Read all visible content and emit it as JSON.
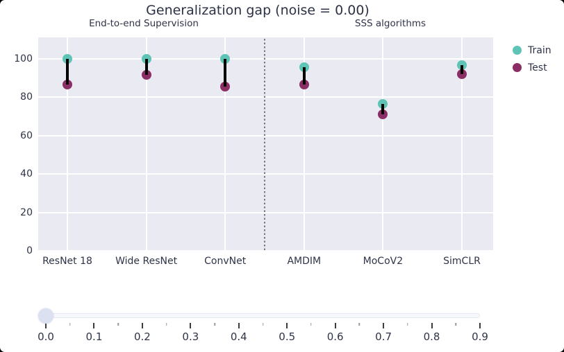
{
  "chart_data": {
    "type": "scatter",
    "title": "Generalization gap (noise = 0.00)",
    "categories": [
      "ResNet 18",
      "Wide ResNet",
      "ConvNet",
      "AMDIM",
      "MoCoV2",
      "SimCLR"
    ],
    "series": [
      {
        "name": "Train",
        "color": "#5ec4b6",
        "values": [
          100,
          100,
          100,
          95.5,
          76.5,
          96.5
        ]
      },
      {
        "name": "Test",
        "color": "#8b2e66",
        "values": [
          86.5,
          91.5,
          85.5,
          86.5,
          71,
          92
        ]
      }
    ],
    "connector_color": "#000000",
    "group_annotations": [
      {
        "text": "End-to-end Supervision",
        "x": 207
      },
      {
        "text": "SSS algorithms",
        "x": 562
      }
    ],
    "divider_between": [
      "ConvNet",
      "AMDIM"
    ],
    "xlabel": "",
    "ylabel": "",
    "ylim": [
      0,
      111
    ],
    "yticks": [
      0,
      20,
      40,
      60,
      80,
      100
    ],
    "grid": true,
    "plot_bg": "#eaeaf2",
    "gridline_color": "#ffffff",
    "legend_position": "top-right-outside"
  },
  "slider": {
    "value": "0.0",
    "labels": [
      "0.0",
      "0.1",
      "0.2",
      "0.3",
      "0.4",
      "0.5",
      "0.6",
      "0.7",
      "0.8",
      "0.9"
    ],
    "handle_color": "#dce1f2"
  }
}
